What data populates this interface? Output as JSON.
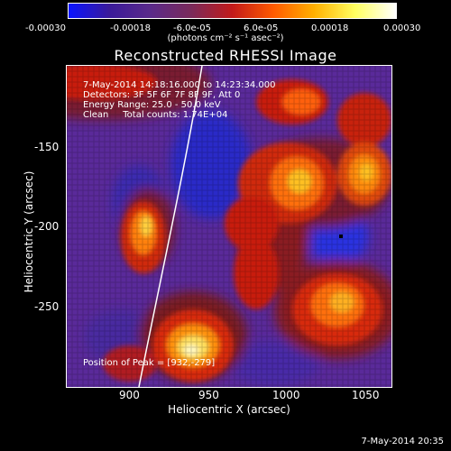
{
  "colorbar": {
    "ticks": [
      "-0.00030",
      "-0.00018",
      "-6.0e-05",
      "6.0e-05",
      "0.00018",
      "0.00030"
    ],
    "unit_label": "(photons cm⁻² s⁻¹ asec⁻²)",
    "colors": [
      "#0a14ff",
      "#3a1a9a",
      "#5a2a8a",
      "#7a2a5a",
      "#c21a1a",
      "#ff5a00",
      "#ffb000",
      "#ffff60",
      "#ffffff"
    ]
  },
  "plot": {
    "title": "Reconstructed RHESSI Image",
    "xlabel": "Heliocentric X (arcsec)",
    "ylabel": "Heliocentric Y (arcsec)",
    "x_ticks": [
      "900",
      "950",
      "1000",
      "1050"
    ],
    "y_ticks": [
      "-150",
      "-200",
      "-250"
    ],
    "info": {
      "time_range": "7-May-2014 14:18:16.000 to 14:23:34.000",
      "detectors": "Detectors: 3F 5F 6F 7F 8F 9F, Att 0",
      "energy_range": "Energy Range: 25.0 - 50.0 keV",
      "clean": "Clean     Total counts: 1.74E+04",
      "peak": "Position of Peak = [932,-279]"
    }
  },
  "footer": {
    "timestamp": "7-May-2014 20:35"
  }
}
